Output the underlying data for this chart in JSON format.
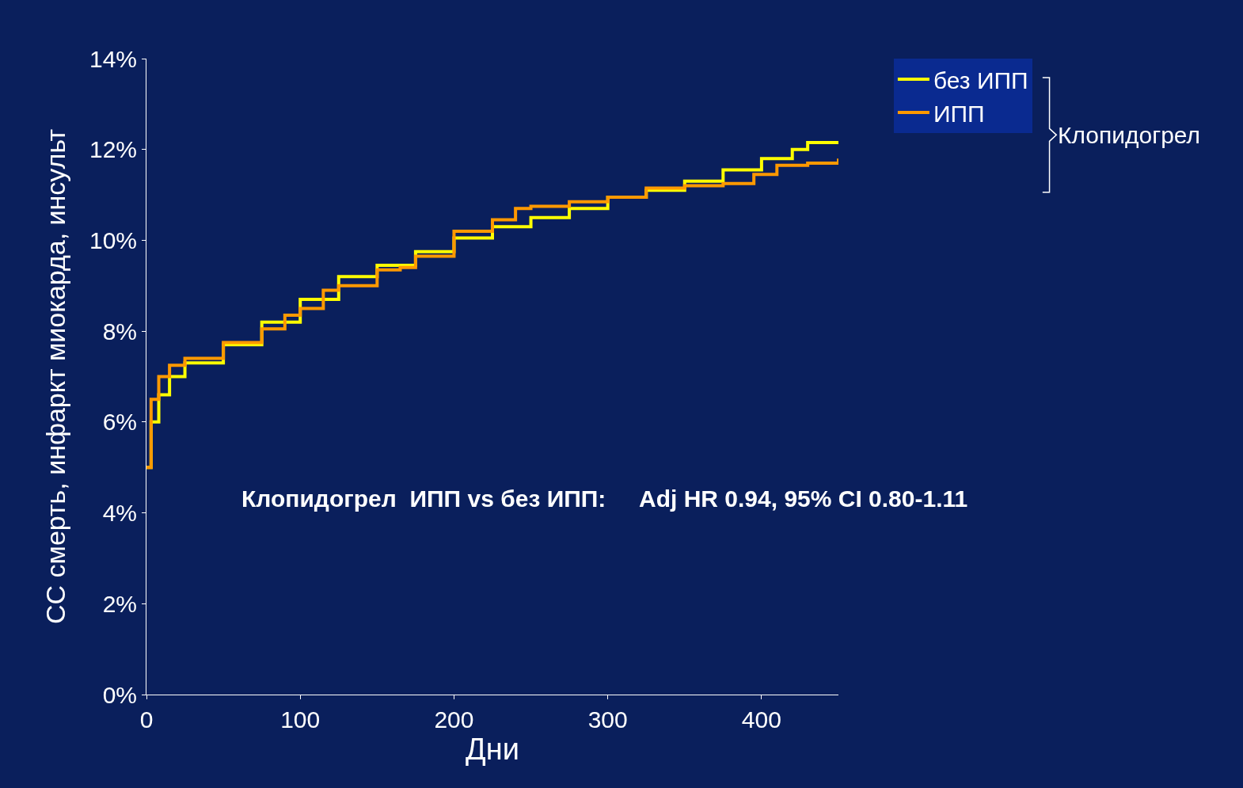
{
  "chart_data": {
    "type": "step",
    "xlabel": "Дни",
    "ylabel": "СС смерть, инфаркт миокарда, инсульт",
    "legend_title": "Клопидогрел",
    "xlim": [
      0,
      450
    ],
    "xticks": [
      0,
      100,
      200,
      300,
      400
    ],
    "ylim": [
      0,
      14
    ],
    "yticks": [
      {
        "value": 0,
        "label": "0%"
      },
      {
        "value": 2,
        "label": "2%"
      },
      {
        "value": 4,
        "label": "4%"
      },
      {
        "value": 6,
        "label": "6%"
      },
      {
        "value": 8,
        "label": "8%"
      },
      {
        "value": 10,
        "label": "10%"
      },
      {
        "value": 12,
        "label": "12%"
      },
      {
        "value": 14,
        "label": "14%"
      }
    ],
    "grid": false,
    "legend": "top right",
    "annotations": [
      "Клопидогрел  ИПП vs без ИПП:     Adj HR 0.94, 95% CI 0.80-1.11"
    ],
    "series": [
      {
        "name": "без ИПП",
        "color": "#ffff00",
        "x": [
          0,
          3,
          8,
          15,
          25,
          50,
          75,
          100,
          125,
          150,
          175,
          200,
          225,
          250,
          275,
          300,
          325,
          350,
          375,
          400,
          420,
          430,
          450
        ],
        "values": [
          5.0,
          6.0,
          6.6,
          7.0,
          7.3,
          7.7,
          8.2,
          8.7,
          9.2,
          9.45,
          9.75,
          10.05,
          10.3,
          10.5,
          10.7,
          10.95,
          11.1,
          11.3,
          11.55,
          11.8,
          12.0,
          12.15,
          12.15
        ]
      },
      {
        "name": "ИПП",
        "color": "#ff9900",
        "x": [
          0,
          3,
          8,
          15,
          25,
          50,
          75,
          90,
          100,
          115,
          125,
          150,
          165,
          175,
          200,
          225,
          240,
          250,
          275,
          300,
          325,
          350,
          375,
          395,
          410,
          430,
          450
        ],
        "values": [
          5.0,
          6.5,
          7.0,
          7.25,
          7.4,
          7.75,
          8.05,
          8.35,
          8.5,
          8.9,
          9.0,
          9.35,
          9.4,
          9.65,
          10.2,
          10.45,
          10.7,
          10.75,
          10.85,
          10.95,
          11.15,
          11.2,
          11.25,
          11.45,
          11.65,
          11.7,
          11.8
        ]
      }
    ]
  }
}
